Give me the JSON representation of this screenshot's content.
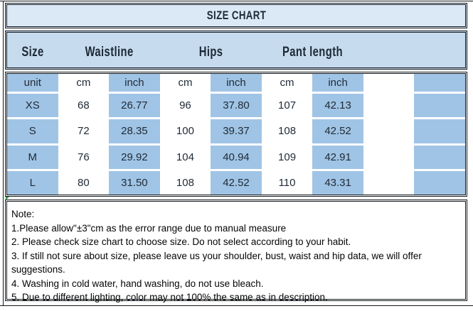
{
  "title": "SIZE CHART",
  "header": {
    "size": "Size",
    "waistline": "Waistline",
    "hips": "Hips",
    "pant_length": "Pant length"
  },
  "table": {
    "rows": [
      {
        "cells": [
          "unit",
          "cm",
          "inch",
          "cm",
          "inch",
          "cm",
          "inch",
          "",
          ""
        ]
      },
      {
        "cells": [
          "XS",
          "68",
          "26.77",
          "96",
          "37.80",
          "107",
          "42.13",
          "",
          ""
        ]
      },
      {
        "cells": [
          "S",
          "72",
          "28.35",
          "100",
          "39.37",
          "108",
          "42.52",
          "",
          ""
        ]
      },
      {
        "cells": [
          "M",
          "76",
          "29.92",
          "104",
          "40.94",
          "109",
          "42.91",
          "",
          ""
        ]
      },
      {
        "cells": [
          "L",
          "80",
          "31.50",
          "108",
          "42.52",
          "110",
          "43.31",
          "",
          ""
        ]
      }
    ]
  },
  "note": {
    "heading": "Note:",
    "lines": [
      "1.Please allow\"±3\"cm as the error range due to manual measure",
      "2. Please check size chart to choose size. Do not select according to your habit.",
      "3. If still not sure about size, please leave us your shoulder, bust, waist and hip data, we will offer",
      "suggestions.",
      "4. Washing in cold water, hand washing, do not use bleach.",
      "5. Due to different lighting, color may not 100% the same as in description."
    ]
  },
  "colors": {
    "title_bg": "#dbe8f5",
    "header_bg": "#c7dbee",
    "cell_blue": "#a0c4e5",
    "border": "#14181c",
    "text_dark": "#1c2836"
  }
}
